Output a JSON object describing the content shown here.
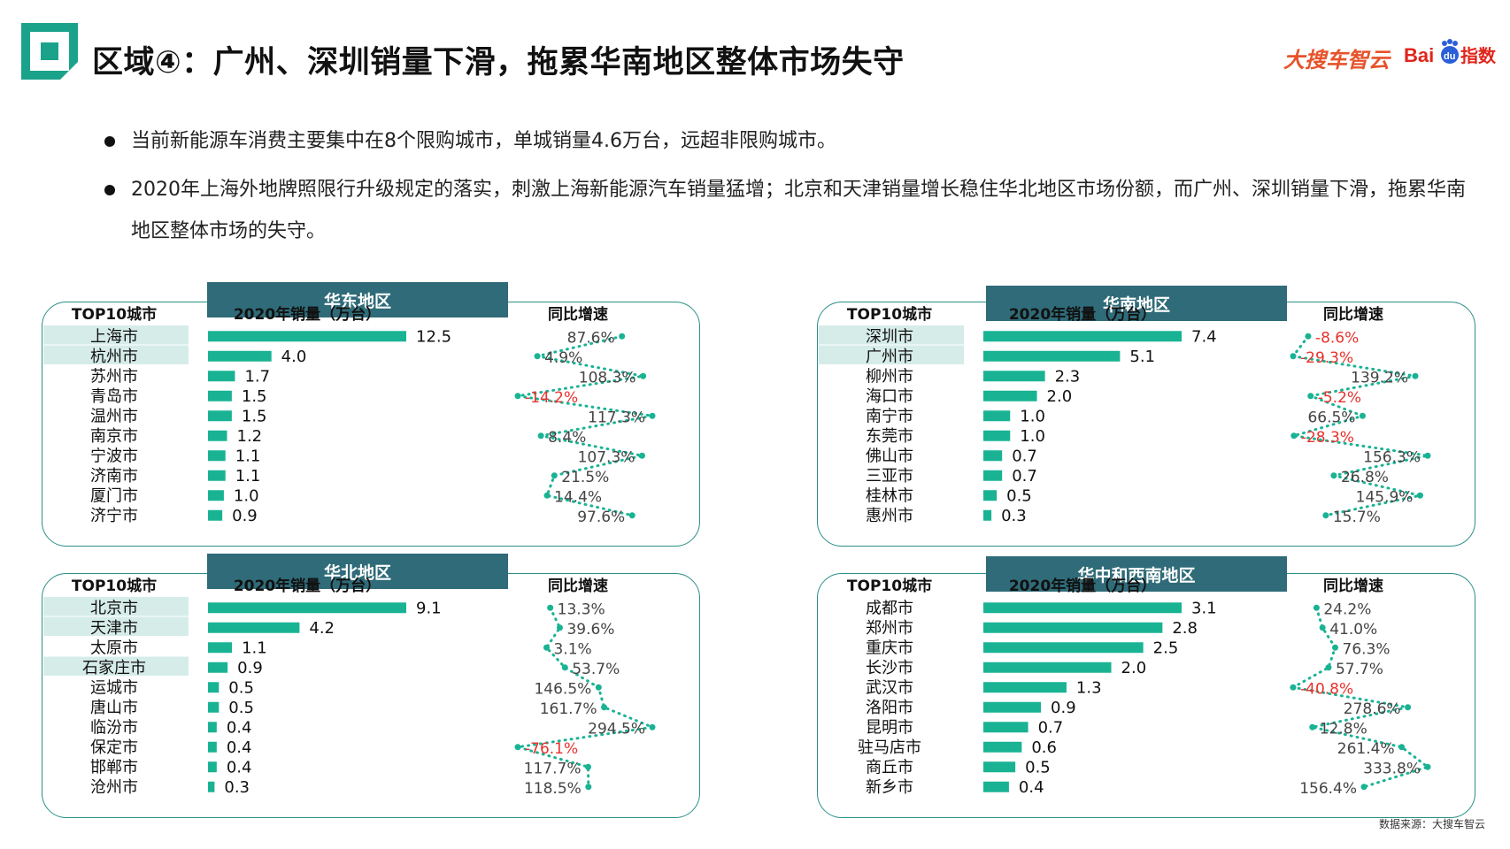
{
  "header": {
    "title": "区域④：广州、深圳销量下滑，拖累华南地区整体市场失守",
    "brand_1": "大搜车智云",
    "brand_2": "Baidu指数"
  },
  "bullets": [
    "当前新能源车消费主要集中在8个限购城市，单城销量4.6万台，远超非限购城市。",
    "2020年上海外地牌照限行升级规定的落实，刺激上海新能源汽车销量猛增；北京和天津销量增长稳住华北地区市场份额，而广州、深圳销量下滑，拖累华南地区整体市场的失守。"
  ],
  "source": "数据来源：大搜车智云",
  "colors": {
    "bar": "#19b394",
    "line": "#19b394",
    "negative": "#e8312b",
    "highlight": "#d6ece8",
    "tab": "#2f6b78",
    "border": "#2a8f87"
  },
  "chart_data": [
    {
      "type": "bar",
      "title": "华东地区",
      "col_city": "TOP10城市",
      "col_sales": "2020年销量（万台）",
      "col_growth": "同比增速",
      "categories": [
        "上海市",
        "杭州市",
        "苏州市",
        "青岛市",
        "温州市",
        "南京市",
        "宁波市",
        "济南市",
        "厦门市",
        "济宁市"
      ],
      "values": [
        12.5,
        4.0,
        1.7,
        1.5,
        1.5,
        1.2,
        1.1,
        1.1,
        1.0,
        0.9
      ],
      "value_labels": [
        "12.5",
        "4.0",
        "1.7",
        "1.5",
        "1.5",
        "1.2",
        "1.1",
        "1.1",
        "1.0",
        "0.9"
      ],
      "growth": [
        87.6,
        4.9,
        108.3,
        -14.2,
        117.3,
        8.4,
        107.3,
        21.5,
        14.4,
        97.6
      ],
      "growth_labels": [
        "87.6%",
        "4.9%",
        "108.3%",
        "-14.2%",
        "117.3%",
        "8.4%",
        "107.3%",
        "21.5%",
        "14.4%",
        "97.6%"
      ],
      "highlight": [
        0,
        1
      ]
    },
    {
      "type": "bar",
      "title": "华南地区",
      "col_city": "TOP10城市",
      "col_sales": "2020年销量（万台）",
      "col_growth": "同比增速",
      "categories": [
        "深圳市",
        "广州市",
        "柳州市",
        "海口市",
        "南宁市",
        "东莞市",
        "佛山市",
        "三亚市",
        "桂林市",
        "惠州市"
      ],
      "values": [
        7.4,
        5.1,
        2.3,
        2.0,
        1.0,
        1.0,
        0.7,
        0.7,
        0.5,
        0.3
      ],
      "value_labels": [
        "7.4",
        "5.1",
        "2.3",
        "2.0",
        "1.0",
        "1.0",
        "0.7",
        "0.7",
        "0.5",
        "0.3"
      ],
      "growth": [
        -8.6,
        -29.3,
        139.2,
        -5.2,
        66.5,
        -28.3,
        156.3,
        26.8,
        145.9,
        15.7
      ],
      "growth_labels": [
        "-8.6%",
        "-29.3%",
        "139.2%",
        "-5.2%",
        "66.5%",
        "-28.3%",
        "156.3%",
        "26.8%",
        "145.9%",
        "15.7%"
      ],
      "highlight": [
        0,
        1
      ]
    },
    {
      "type": "bar",
      "title": "华北地区",
      "col_city": "TOP10城市",
      "col_sales": "2020年销量（万台）",
      "col_growth": "同比增速",
      "categories": [
        "北京市",
        "天津市",
        "太原市",
        "石家庄市",
        "运城市",
        "唐山市",
        "临汾市",
        "保定市",
        "邯郸市",
        "沧州市"
      ],
      "values": [
        9.1,
        4.2,
        1.1,
        0.9,
        0.5,
        0.5,
        0.4,
        0.4,
        0.4,
        0.3
      ],
      "value_labels": [
        "9.1",
        "4.2",
        "1.1",
        "0.9",
        "0.5",
        "0.5",
        "0.4",
        "0.4",
        "0.4",
        "0.3"
      ],
      "growth": [
        13.3,
        39.6,
        3.1,
        53.7,
        146.5,
        161.7,
        294.5,
        -76.1,
        117.7,
        118.5
      ],
      "growth_labels": [
        "13.3%",
        "39.6%",
        "3.1%",
        "53.7%",
        "146.5%",
        "161.7%",
        "294.5%",
        "-76.1%",
        "117.7%",
        "118.5%"
      ],
      "highlight": [
        0,
        1,
        3
      ]
    },
    {
      "type": "bar",
      "title": "华中和西南地区",
      "col_city": "TOP10城市",
      "col_sales": "2020年销量（万台）",
      "col_growth": "同比增速",
      "categories": [
        "成都市",
        "郑州市",
        "重庆市",
        "长沙市",
        "武汉市",
        "洛阳市",
        "昆明市",
        "驻马店市",
        "商丘市",
        "新乡市"
      ],
      "values": [
        3.1,
        2.8,
        2.5,
        2.0,
        1.3,
        0.9,
        0.7,
        0.6,
        0.5,
        0.4
      ],
      "value_labels": [
        "3.1",
        "2.8",
        "2.5",
        "2.0",
        "1.3",
        "0.9",
        "0.7",
        "0.6",
        "0.5",
        "0.4"
      ],
      "growth": [
        24.2,
        41.0,
        76.3,
        57.7,
        -40.8,
        278.6,
        12.8,
        261.4,
        333.8,
        156.4
      ],
      "growth_labels": [
        "24.2%",
        "41.0%",
        "76.3%",
        "57.7%",
        "-40.8%",
        "278.6%",
        "12.8%",
        "261.4%",
        "333.8%",
        "156.4%"
      ],
      "highlight": []
    }
  ]
}
